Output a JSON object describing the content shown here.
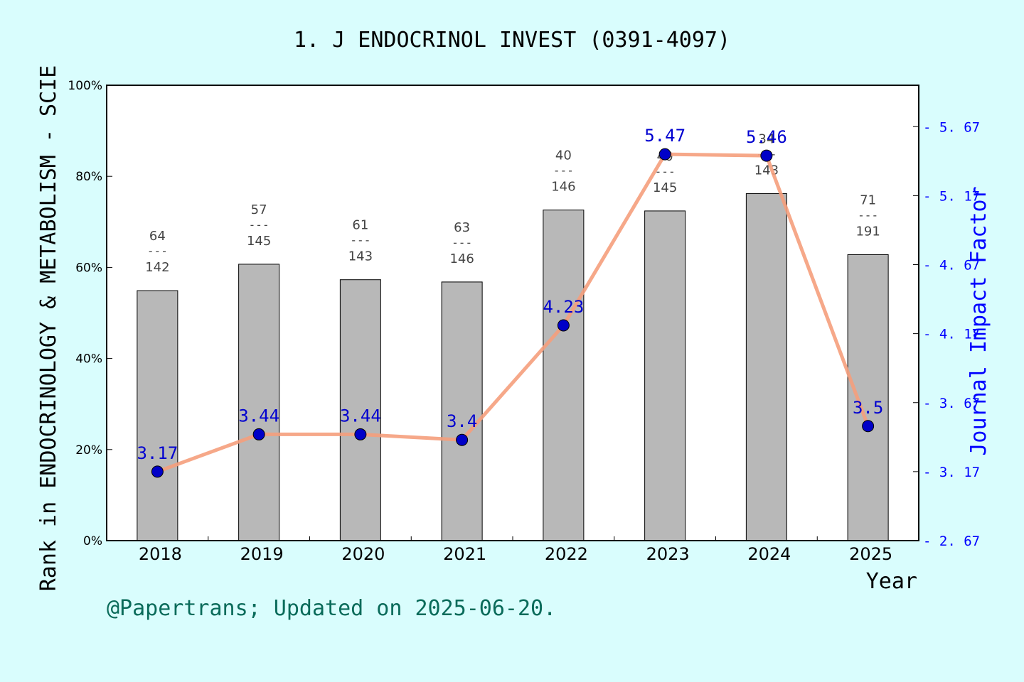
{
  "chart_data": {
    "type": "bar",
    "title": "1. J ENDOCRINOL INVEST (0391-4097)",
    "xlabel": "Year",
    "ylabel": "Rank in ENDOCRINOLOGY & METABOLISM - SCIE",
    "y2label": "Journal Impact Factor",
    "categories": [
      "2018",
      "2019",
      "2020",
      "2021",
      "2022",
      "2023",
      "2024",
      "2025"
    ],
    "series": [
      {
        "kind": "bar",
        "values": [
          54.9,
          60.7,
          57.3,
          56.8,
          72.6,
          72.4,
          76.2,
          62.8
        ],
        "ranks": [
          {
            "rank": "64",
            "total": "142"
          },
          {
            "rank": "57",
            "total": "145"
          },
          {
            "rank": "61",
            "total": "143"
          },
          {
            "rank": "63",
            "total": "146"
          },
          {
            "rank": "40",
            "total": "146"
          },
          {
            "rank": "40",
            "total": "145"
          },
          {
            "rank": "34",
            "total": "143"
          },
          {
            "rank": "71",
            "total": "191"
          }
        ],
        "color": "#b8b8b8"
      },
      {
        "kind": "line",
        "axis": "right",
        "values": [
          3.17,
          3.44,
          3.44,
          3.4,
          4.23,
          5.47,
          5.46,
          3.5
        ],
        "labels": [
          "3.17",
          "3.44",
          "3.44",
          "3.4",
          "4.23",
          "5.47",
          "5.46",
          "3.5"
        ],
        "line_color": "#f59e7c",
        "marker_color": "#0000c8"
      }
    ],
    "ylim": [
      0,
      100
    ],
    "y_ticks": [
      "0%",
      "20%",
      "40%",
      "60%",
      "80%",
      "100%"
    ],
    "y2lim": [
      2.67,
      5.97
    ],
    "y2_ticks": [
      "2.67",
      "3.17",
      "3.67",
      "4.17",
      "4.67",
      "5.17",
      "5.67"
    ],
    "rank_separator": "---",
    "grid": false
  },
  "footer": "@Papertrans; Updated on 2025-06-20.",
  "colors": {
    "background": "#d9fdfd",
    "plot_bg": "#ffffff",
    "right_axis": "#0000ff",
    "footer": "#0a6b5a"
  }
}
